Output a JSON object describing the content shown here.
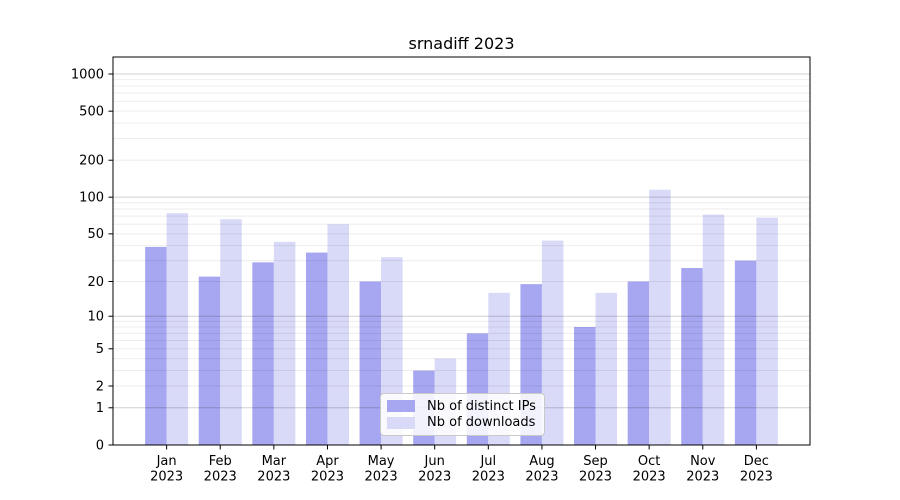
{
  "chart_data": {
    "type": "bar",
    "title": "srnadiff 2023",
    "xlabel": "",
    "ylabel": "",
    "categories": [
      "Jan",
      "Feb",
      "Mar",
      "Apr",
      "May",
      "Jun",
      "Jul",
      "Aug",
      "Sep",
      "Oct",
      "Nov",
      "Dec"
    ],
    "category_year": "2023",
    "series": [
      {
        "name": "Nb of distinct IPs",
        "color": "#a6a6f1",
        "values": [
          39,
          22,
          29,
          35,
          20,
          3,
          7,
          19,
          8,
          20,
          26,
          30
        ]
      },
      {
        "name": "Nb of downloads",
        "color": "#d9d9f8",
        "values": [
          74,
          66,
          43,
          60,
          32,
          4,
          16,
          44,
          16,
          115,
          72,
          68
        ]
      }
    ],
    "yscale": "log1p",
    "y_ticks": [
      0,
      1,
      2,
      5,
      10,
      20,
      50,
      100,
      200,
      500,
      1000
    ],
    "ylim": [
      0,
      1373
    ],
    "grid": "horizontal",
    "grid_major_at": [
      1,
      10,
      100,
      1000
    ],
    "legend_position": "inside-bottom-center",
    "colors": {
      "axis": "#000000",
      "grid_minor": "rgba(0,0,0,0.07)",
      "grid_major": "rgba(0,0,0,0.18)",
      "background": "#ffffff"
    }
  }
}
